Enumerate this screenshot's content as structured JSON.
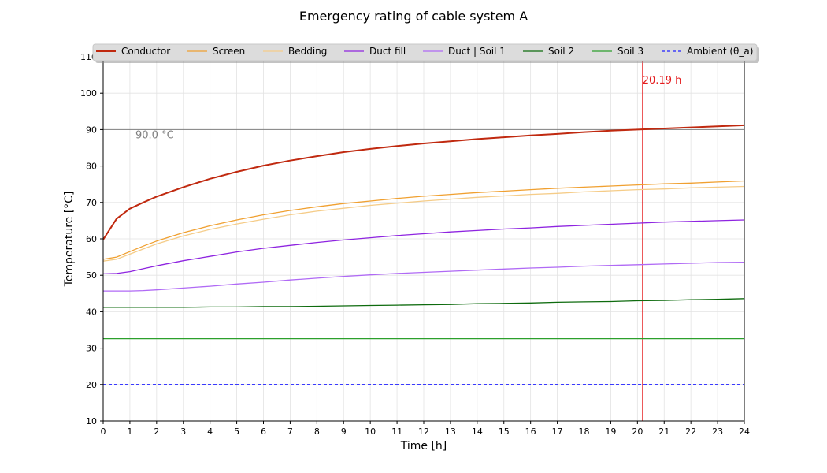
{
  "chart_data": {
    "type": "line",
    "title": "Emergency rating of cable system A",
    "xlabel": "Time [h]",
    "ylabel": "Temperature [°C]",
    "xlim": [
      0,
      24
    ],
    "ylim": [
      10,
      110
    ],
    "xticks": [
      0,
      1,
      2,
      3,
      4,
      5,
      6,
      7,
      8,
      9,
      10,
      11,
      12,
      13,
      14,
      15,
      16,
      17,
      18,
      19,
      20,
      21,
      22,
      23,
      24
    ],
    "yticks": [
      10,
      20,
      30,
      40,
      50,
      60,
      70,
      80,
      90,
      100,
      110
    ],
    "grid": true,
    "legend_position": "top",
    "hline": {
      "y": 90,
      "label": "90.0 °C",
      "color": "#7f7f7f"
    },
    "vline": {
      "x": 20.19,
      "label": "20.19 h",
      "color": "#e41a1c"
    },
    "x": [
      0,
      0.5,
      1,
      1.5,
      2,
      3,
      4,
      5,
      6,
      7,
      8,
      9,
      10,
      11,
      12,
      13,
      14,
      15,
      16,
      17,
      18,
      19,
      20,
      21,
      22,
      23,
      24
    ],
    "series": [
      {
        "name": "Conductor",
        "color": "#c0290f",
        "width": 2,
        "dash": "",
        "values": [
          59.8,
          65.5,
          68.3,
          70.0,
          71.6,
          74.2,
          76.5,
          78.4,
          80.1,
          81.5,
          82.7,
          83.8,
          84.7,
          85.5,
          86.2,
          86.8,
          87.4,
          87.9,
          88.4,
          88.8,
          89.3,
          89.7,
          90.0,
          90.3,
          90.6,
          90.9,
          91.2
        ]
      },
      {
        "name": "Screen",
        "color": "#f0a030",
        "width": 1.3,
        "dash": "",
        "values": [
          54.4,
          55.0,
          56.5,
          58.0,
          59.4,
          61.7,
          63.6,
          65.2,
          66.6,
          67.8,
          68.8,
          69.7,
          70.4,
          71.1,
          71.7,
          72.2,
          72.7,
          73.1,
          73.5,
          73.9,
          74.2,
          74.5,
          74.8,
          75.1,
          75.3,
          75.6,
          75.9
        ]
      },
      {
        "name": "Bedding",
        "color": "#f5cc88",
        "width": 1.3,
        "dash": "",
        "values": [
          53.9,
          54.4,
          55.8,
          57.2,
          58.6,
          60.8,
          62.6,
          64.1,
          65.4,
          66.6,
          67.6,
          68.4,
          69.2,
          69.8,
          70.4,
          70.9,
          71.4,
          71.8,
          72.2,
          72.5,
          72.9,
          73.2,
          73.5,
          73.7,
          74.0,
          74.2,
          74.4
        ]
      },
      {
        "name": "Duct fill",
        "color": "#8e24e0",
        "width": 1.3,
        "dash": "",
        "values": [
          50.4,
          50.5,
          51.0,
          51.8,
          52.6,
          54.0,
          55.2,
          56.4,
          57.4,
          58.2,
          59.0,
          59.7,
          60.3,
          60.9,
          61.4,
          61.9,
          62.3,
          62.7,
          63.0,
          63.4,
          63.7,
          64.0,
          64.3,
          64.6,
          64.8,
          65.0,
          65.2
        ]
      },
      {
        "name": "Duct | Soil 1",
        "color": "#b06af5",
        "width": 1.3,
        "dash": "",
        "values": [
          45.7,
          45.7,
          45.7,
          45.8,
          46.0,
          46.5,
          47.0,
          47.6,
          48.1,
          48.7,
          49.2,
          49.7,
          50.1,
          50.5,
          50.8,
          51.1,
          51.4,
          51.7,
          52.0,
          52.2,
          52.5,
          52.7,
          52.9,
          53.1,
          53.3,
          53.5,
          53.6
        ]
      },
      {
        "name": "Soil 2",
        "color": "#0e6b0e",
        "width": 1.3,
        "dash": "",
        "values": [
          41.2,
          41.2,
          41.2,
          41.2,
          41.2,
          41.2,
          41.3,
          41.3,
          41.4,
          41.4,
          41.5,
          41.6,
          41.7,
          41.8,
          41.9,
          42.0,
          42.2,
          42.3,
          42.4,
          42.6,
          42.7,
          42.8,
          43.0,
          43.1,
          43.3,
          43.4,
          43.6
        ]
      },
      {
        "name": "Soil 3",
        "color": "#2ca02c",
        "width": 1.3,
        "dash": "",
        "values": [
          32.6,
          32.6,
          32.6,
          32.6,
          32.6,
          32.6,
          32.6,
          32.6,
          32.6,
          32.6,
          32.6,
          32.6,
          32.6,
          32.6,
          32.6,
          32.6,
          32.6,
          32.6,
          32.6,
          32.6,
          32.6,
          32.6,
          32.6,
          32.6,
          32.6,
          32.6,
          32.6
        ]
      },
      {
        "name": "Ambient (θ_a)",
        "color": "#1f1fff",
        "width": 1.3,
        "dash": "4,3",
        "values": [
          20,
          20,
          20,
          20,
          20,
          20,
          20,
          20,
          20,
          20,
          20,
          20,
          20,
          20,
          20,
          20,
          20,
          20,
          20,
          20,
          20,
          20,
          20,
          20,
          20,
          20,
          20
        ]
      }
    ]
  }
}
